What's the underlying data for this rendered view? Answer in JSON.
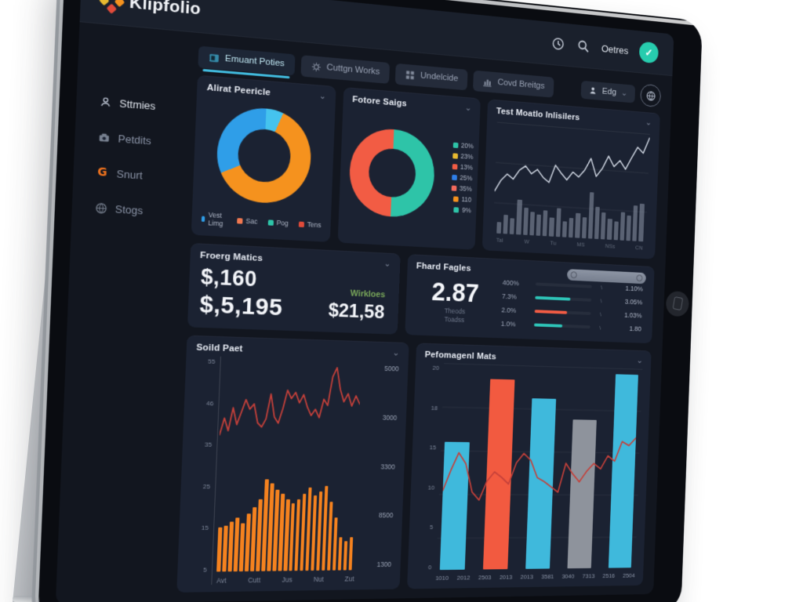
{
  "header": {
    "logo_text": "Klipfolio",
    "user_name": "Oetres"
  },
  "tabs": [
    {
      "label": "Emuant Poties",
      "active": true
    },
    {
      "label": "Cuttgn Works",
      "active": false
    },
    {
      "label": "Undelcide",
      "active": false
    },
    {
      "label": "Covd Breitgs",
      "active": false
    }
  ],
  "actions": {
    "edit_label": "Edg"
  },
  "sidebar": {
    "items": [
      {
        "label": "Sttmies"
      },
      {
        "label": "Petdits"
      },
      {
        "label": "Snurt"
      },
      {
        "label": "Stogs"
      }
    ]
  },
  "colors": {
    "accent_cyan": "#41b9dc",
    "avatar_teal": "#27ccae",
    "bar_orange": "#f5821f",
    "line_red": "#c4403a",
    "combo_line_grey": "#cdd4e0"
  },
  "panels": {
    "donut1": {
      "title": "Alirat Peericle",
      "slices": [
        {
          "color": "#45c3ee",
          "pct": 6
        },
        {
          "color": "#f5921e",
          "pct": 62
        },
        {
          "color": "#2f9ee8",
          "pct": 32
        }
      ],
      "legend": [
        {
          "color": "#2f9ee8",
          "label": "Vest Limg"
        },
        {
          "color": "#f07850",
          "label": "Sac"
        },
        {
          "color": "#2ec4a8",
          "label": "Pog"
        },
        {
          "color": "#e04b3a",
          "label": "Tens"
        }
      ]
    },
    "donut2": {
      "title": "Fotore Saigs",
      "slices": [
        {
          "color": "#2ec4a8",
          "pct": 50
        },
        {
          "color": "#f25c44",
          "pct": 50
        }
      ],
      "legend": [
        {
          "color": "#2ec4a8",
          "label": "20%"
        },
        {
          "color": "#e8b930",
          "label": "23%"
        },
        {
          "color": "#f25c44",
          "label": "13%"
        },
        {
          "color": "#2f7fe8",
          "label": "25%"
        },
        {
          "color": "#f2695c",
          "label": "35%"
        },
        {
          "color": "#f5921e",
          "label": "110"
        },
        {
          "color": "#2ec4a8",
          "label": "9%"
        }
      ]
    },
    "combo": {
      "title": "Test Moatlo Inlisilers",
      "line": {
        "values": [
          28,
          40,
          47,
          42,
          52,
          57,
          49,
          54,
          46,
          41,
          60,
          52,
          45,
          54,
          49,
          57,
          70,
          51,
          60,
          74,
          63,
          70,
          61,
          74,
          86,
          80,
          97
        ]
      },
      "bars": {
        "values": [
          18,
          30,
          26,
          56,
          44,
          38,
          34,
          42,
          30,
          46,
          26,
          32,
          40,
          34,
          76,
          52,
          44,
          34,
          30,
          46,
          42,
          58,
          62
        ]
      },
      "x_labels": [
        "Tal",
        "W",
        "Tu",
        "MS",
        "NSs",
        "CN"
      ]
    },
    "metrics": {
      "title": "Froerg Matics",
      "value1": "$,160",
      "value2": "$,5,195",
      "sub_label": "Wirkloes",
      "sub_value": "$21,58"
    },
    "gauges": {
      "title": "Fhard Fagles",
      "big_value": "2.87",
      "sub1": "Theods",
      "sub2": "Toadss",
      "rows": [
        {
          "left": "400%",
          "right": "1.10%",
          "bar_color": "#3a4254",
          "bar_pct": "0"
        },
        {
          "left": "7.3%",
          "right": "3.05%",
          "bar_color": "#2ec4b8",
          "bar_pct": "62"
        },
        {
          "left": "2.0%",
          "right": "1.03%",
          "bar_color": "#f25c44",
          "bar_pct": "58"
        },
        {
          "left": "1.0%",
          "right": "1.80",
          "bar_color": "#2ec4b8",
          "bar_pct": "50"
        }
      ]
    },
    "sales": {
      "title": "Soild Paet",
      "y_left": [
        {
          "label": "55"
        },
        {
          "label": "46"
        },
        {
          "label": "35"
        },
        {
          "label": "25"
        },
        {
          "label": "15"
        },
        {
          "label": "5"
        }
      ],
      "y_right": [
        {
          "label": "5000"
        },
        {
          "label": "3000"
        },
        {
          "label": "3300"
        },
        {
          "label": "8500"
        },
        {
          "label": "1300"
        }
      ],
      "line": {
        "values": [
          30,
          46,
          34,
          56,
          40,
          52,
          64,
          55,
          60,
          42,
          38,
          46,
          70,
          48,
          42,
          56,
          74,
          66,
          72,
          62,
          70,
          58,
          50,
          56,
          48,
          66,
          60,
          88,
          97,
          76,
          64,
          72,
          60,
          70,
          62
        ]
      },
      "bars": {
        "values": [
          44,
          46,
          50,
          54,
          48,
          58,
          64,
          72,
          92,
          88,
          82,
          78,
          72,
          68,
          72,
          78,
          84,
          76,
          80,
          86,
          70,
          54,
          34,
          30,
          34
        ]
      },
      "x_labels": [
        {
          "label": "Avt"
        },
        {
          "label": "Cutt"
        },
        {
          "label": "Jus"
        },
        {
          "label": "Nut"
        },
        {
          "label": "Zut"
        }
      ]
    },
    "performance": {
      "title": "Pefomagenl Mats",
      "y_labels": [
        {
          "label": "20"
        },
        {
          "label": "18"
        },
        {
          "label": "15"
        },
        {
          "label": "10"
        },
        {
          "label": "5"
        },
        {
          "label": "0"
        }
      ],
      "bars": [
        {
          "color": "#3fb9dc",
          "value": 62
        },
        {
          "color": "#f25a40",
          "value": 93
        },
        {
          "color": "#3fb9dc",
          "value": 84
        },
        {
          "color": "#8e939c",
          "value": 74
        },
        {
          "color": "#3fb9dc",
          "value": 97
        }
      ],
      "line": {
        "values": [
          35,
          50,
          63,
          55,
          34,
          28,
          42,
          49,
          45,
          40,
          56,
          63,
          58,
          45,
          42,
          38,
          34,
          56,
          48,
          42,
          50,
          56,
          52,
          62,
          58,
          73,
          70,
          76
        ]
      },
      "x_labels": [
        {
          "label": "1010"
        },
        {
          "label": "2012"
        },
        {
          "label": "2503"
        },
        {
          "label": "2013"
        },
        {
          "label": "2013"
        },
        {
          "label": "3581"
        },
        {
          "label": "3040"
        },
        {
          "label": "7313"
        },
        {
          "label": "2516"
        },
        {
          "label": "2504"
        }
      ]
    }
  }
}
